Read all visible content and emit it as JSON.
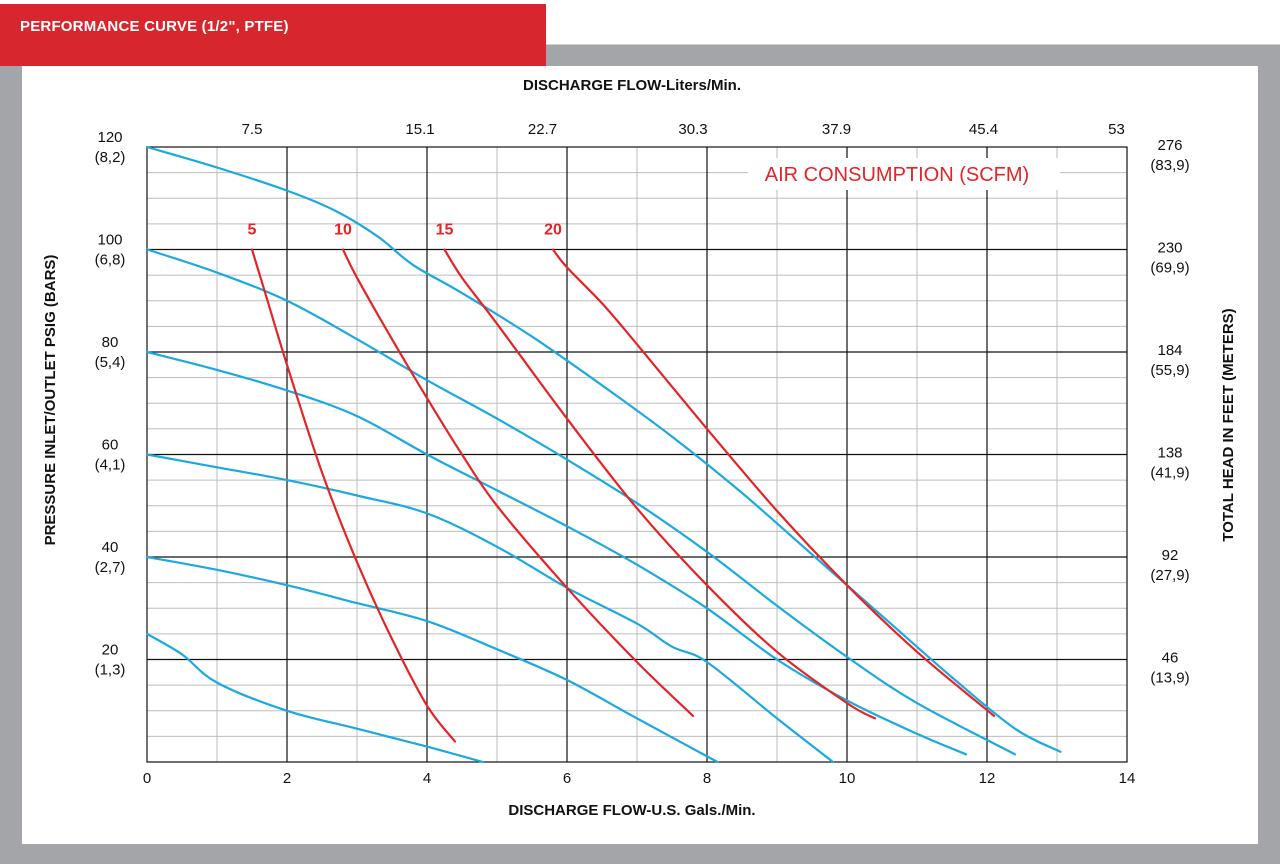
{
  "header": {
    "title": "PERFORMANCE CURVE (1/2\", PTFE)"
  },
  "colors": {
    "accent_red": "#d7262e",
    "frame_gray": "#a4a5a8",
    "curve_blue": "#1ba9e0",
    "curve_red": "#e42426"
  },
  "chart_data": {
    "type": "line",
    "title": "AIR CONSUMPTION (SCFM)",
    "xlabel": "DISCHARGE FLOW-U.S. Gals./Min.",
    "x2label": "DISCHARGE FLOW-Liters/Min.",
    "ylabel": "PRESSURE INLET/OUTLET PSIG (BARS)",
    "y2label": "TOTAL HEAD IN FEET (METERS)",
    "xlim": [
      0,
      14
    ],
    "ylim": [
      0,
      120
    ],
    "grid": true,
    "x_ticks": [
      "0",
      "2",
      "4",
      "6",
      "8",
      "10",
      "12",
      "14"
    ],
    "x2_ticks": [
      "7.5",
      "15.1",
      "22.7",
      "30.3",
      "37.9",
      "45.4",
      "53"
    ],
    "y_ticks": [
      {
        "psi": "120",
        "bar": "(8,2)"
      },
      {
        "psi": "100",
        "bar": "(6,8)"
      },
      {
        "psi": "80",
        "bar": "(5,4)"
      },
      {
        "psi": "60",
        "bar": "(4,1)"
      },
      {
        "psi": "40",
        "bar": "(2,7)"
      },
      {
        "psi": "20",
        "bar": "(1,3)"
      }
    ],
    "y2_ticks": [
      {
        "ft": "276",
        "m": "(83,9)"
      },
      {
        "ft": "230",
        "m": "(69,9)"
      },
      {
        "ft": "184",
        "m": "(55,9)"
      },
      {
        "ft": "138",
        "m": "(41,9)"
      },
      {
        "ft": "92",
        "m": "(27,9)"
      },
      {
        "ft": "46",
        "m": "(13,9)"
      }
    ],
    "series": [
      {
        "kind": "pressure",
        "x": [
          0,
          1,
          2,
          2.7,
          3.3,
          3.8,
          4.5,
          5.5,
          6.5,
          7.5,
          8.5,
          9.5,
          10.5,
          11.5,
          12.4,
          13.05
        ],
        "y": [
          120,
          116,
          111.5,
          107.5,
          102.5,
          97,
          91.5,
          83,
          73.5,
          63.5,
          52.5,
          40.5,
          28.5,
          16.5,
          6.5,
          2
        ]
      },
      {
        "kind": "pressure",
        "x": [
          0,
          1,
          2,
          3,
          4,
          5,
          6,
          7,
          8,
          9,
          10,
          11,
          12.4
        ],
        "y": [
          100,
          95.5,
          90,
          82.5,
          74.5,
          67,
          59,
          50.5,
          41,
          30.5,
          20.5,
          11.5,
          1.5
        ]
      },
      {
        "kind": "pressure",
        "x": [
          0,
          1,
          2,
          3,
          4,
          5,
          6,
          7,
          8,
          9,
          10,
          11,
          11.7
        ],
        "y": [
          80,
          76.5,
          72.5,
          67.5,
          60,
          53,
          46,
          38.5,
          30,
          20,
          12,
          5.5,
          1.5
        ]
      },
      {
        "kind": "pressure",
        "x": [
          0,
          1,
          2,
          3,
          4,
          5,
          6,
          7,
          7.5,
          8,
          9,
          9.8
        ],
        "y": [
          60,
          57.5,
          55,
          52,
          48.5,
          42,
          34,
          27,
          22.5,
          19.5,
          8.5,
          0
        ]
      },
      {
        "kind": "pressure",
        "x": [
          0,
          1,
          2,
          3,
          4,
          5,
          6,
          7,
          8.15
        ],
        "y": [
          40,
          37.5,
          34.5,
          31,
          27.5,
          22,
          16,
          8.5,
          0
        ]
      },
      {
        "kind": "pressure",
        "x": [
          0,
          0.5,
          1,
          2,
          3,
          4,
          4.8
        ],
        "y": [
          25,
          21,
          15.5,
          10,
          6.5,
          3,
          0
        ]
      },
      {
        "kind": "air",
        "name": "5",
        "x": [
          1.5,
          1.7,
          2,
          2.5,
          3,
          3.5,
          4,
          4.4
        ],
        "y": [
          100,
          91,
          77.5,
          56.5,
          39,
          24,
          11,
          4
        ]
      },
      {
        "kind": "air",
        "name": "10",
        "x": [
          2.8,
          3,
          3.5,
          4,
          4.5,
          5,
          6,
          7,
          7.8
        ],
        "y": [
          100,
          94.5,
          82.5,
          71,
          60,
          50,
          34,
          19.5,
          9
        ]
      },
      {
        "kind": "air",
        "name": "15",
        "x": [
          4.25,
          4.5,
          5,
          6,
          7,
          8,
          9,
          10,
          10.4
        ],
        "y": [
          100,
          94.5,
          85.5,
          67,
          49.5,
          34.5,
          21.5,
          11.5,
          8.5
        ]
      },
      {
        "kind": "air",
        "name": "20",
        "x": [
          5.8,
          6,
          6.5,
          7,
          8,
          9,
          10,
          11,
          12.1
        ],
        "y": [
          100,
          96.5,
          89.5,
          81.5,
          65,
          49,
          34.5,
          21.5,
          9
        ]
      }
    ]
  }
}
